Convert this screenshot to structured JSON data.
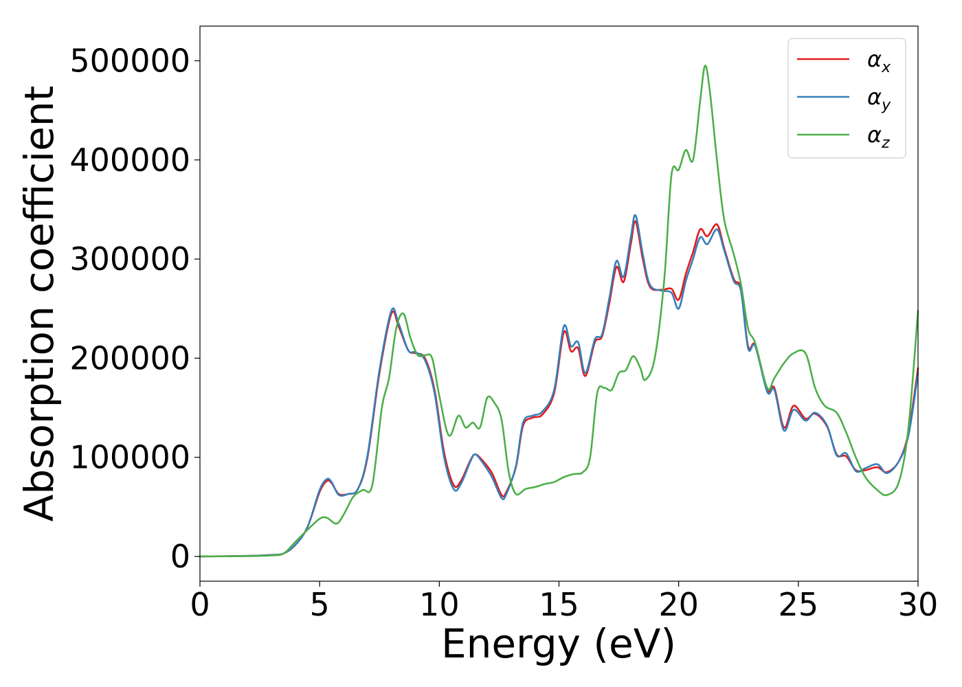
{
  "chart_data": {
    "type": "line",
    "xlabel": "Energy (eV)",
    "ylabel": "Absorption coefficient",
    "xlim": [
      0,
      30
    ],
    "ylim": [
      -25000,
      535000
    ],
    "xticks": [
      "0",
      "5",
      "10",
      "15",
      "20",
      "25",
      "30"
    ],
    "yticks": [
      "0",
      "100000",
      "200000",
      "300000",
      "400000",
      "500000"
    ],
    "grid": false,
    "legend_position": "top-right",
    "series": [
      {
        "name": "αx",
        "legend_base": "α",
        "legend_sub": "x",
        "color": "#e41a1c",
        "points": [
          [
            0,
            0
          ],
          [
            2,
            500
          ],
          [
            3,
            1500
          ],
          [
            3.5,
            3000
          ],
          [
            4,
            12000
          ],
          [
            4.5,
            30000
          ],
          [
            5,
            65000
          ],
          [
            5.3,
            76000
          ],
          [
            5.5,
            74000
          ],
          [
            5.8,
            63000
          ],
          [
            6.2,
            63000
          ],
          [
            6.6,
            68000
          ],
          [
            7,
            100000
          ],
          [
            7.5,
            185000
          ],
          [
            8,
            245000
          ],
          [
            8.3,
            232000
          ],
          [
            8.7,
            208000
          ],
          [
            9,
            205000
          ],
          [
            9.4,
            200000
          ],
          [
            9.8,
            168000
          ],
          [
            10.2,
            105000
          ],
          [
            10.6,
            72000
          ],
          [
            10.9,
            76000
          ],
          [
            11.3,
            97000
          ],
          [
            11.5,
            103000
          ],
          [
            11.8,
            97000
          ],
          [
            12.2,
            84000
          ],
          [
            12.6,
            62000
          ],
          [
            12.8,
            65000
          ],
          [
            13.2,
            90000
          ],
          [
            13.5,
            132000
          ],
          [
            13.9,
            140000
          ],
          [
            14.3,
            143000
          ],
          [
            14.8,
            165000
          ],
          [
            15.2,
            226000
          ],
          [
            15.5,
            207000
          ],
          [
            15.8,
            210000
          ],
          [
            16.1,
            182000
          ],
          [
            16.5,
            216000
          ],
          [
            16.8,
            222000
          ],
          [
            17.1,
            255000
          ],
          [
            17.4,
            292000
          ],
          [
            17.7,
            277000
          ],
          [
            18,
            315000
          ],
          [
            18.2,
            338000
          ],
          [
            18.5,
            300000
          ],
          [
            18.8,
            272000
          ],
          [
            19.3,
            269000
          ],
          [
            19.7,
            270000
          ],
          [
            20,
            259000
          ],
          [
            20.3,
            285000
          ],
          [
            20.6,
            307000
          ],
          [
            20.9,
            330000
          ],
          [
            21.2,
            323000
          ],
          [
            21.6,
            335000
          ],
          [
            21.9,
            311000
          ],
          [
            22.3,
            280000
          ],
          [
            22.6,
            270000
          ],
          [
            22.9,
            212000
          ],
          [
            23.2,
            213000
          ],
          [
            23.7,
            168000
          ],
          [
            24,
            170000
          ],
          [
            24.4,
            130000
          ],
          [
            24.8,
            152000
          ],
          [
            25.3,
            139000
          ],
          [
            25.7,
            144000
          ],
          [
            26.2,
            131000
          ],
          [
            26.6,
            103000
          ],
          [
            27,
            101000
          ],
          [
            27.4,
            87000
          ],
          [
            27.8,
            87000
          ],
          [
            28.3,
            90000
          ],
          [
            28.7,
            85000
          ],
          [
            29.2,
            96000
          ],
          [
            29.6,
            125000
          ],
          [
            30,
            190000
          ]
        ]
      },
      {
        "name": "αy",
        "legend_base": "α",
        "legend_sub": "y",
        "color": "#377eb8",
        "points": [
          [
            0,
            0
          ],
          [
            2,
            500
          ],
          [
            3,
            1500
          ],
          [
            3.5,
            3000
          ],
          [
            4,
            12000
          ],
          [
            4.5,
            30000
          ],
          [
            5,
            67000
          ],
          [
            5.3,
            78000
          ],
          [
            5.5,
            75000
          ],
          [
            5.8,
            62000
          ],
          [
            6.2,
            63000
          ],
          [
            6.6,
            68000
          ],
          [
            7,
            102000
          ],
          [
            7.5,
            188000
          ],
          [
            8,
            248000
          ],
          [
            8.3,
            235000
          ],
          [
            8.7,
            208000
          ],
          [
            9,
            206000
          ],
          [
            9.4,
            198000
          ],
          [
            9.8,
            165000
          ],
          [
            10.2,
            100000
          ],
          [
            10.6,
            68000
          ],
          [
            10.9,
            73000
          ],
          [
            11.3,
            96000
          ],
          [
            11.5,
            103000
          ],
          [
            11.8,
            95000
          ],
          [
            12.2,
            80000
          ],
          [
            12.6,
            59000
          ],
          [
            12.8,
            63000
          ],
          [
            13.2,
            91000
          ],
          [
            13.5,
            135000
          ],
          [
            13.9,
            142000
          ],
          [
            14.3,
            146000
          ],
          [
            14.8,
            168000
          ],
          [
            15.2,
            232000
          ],
          [
            15.5,
            212000
          ],
          [
            15.8,
            216000
          ],
          [
            16.1,
            185000
          ],
          [
            16.5,
            219000
          ],
          [
            16.8,
            224000
          ],
          [
            17.1,
            260000
          ],
          [
            17.4,
            298000
          ],
          [
            17.7,
            282000
          ],
          [
            18,
            322000
          ],
          [
            18.2,
            344000
          ],
          [
            18.5,
            305000
          ],
          [
            18.8,
            274000
          ],
          [
            19.3,
            268000
          ],
          [
            19.7,
            266000
          ],
          [
            20,
            250000
          ],
          [
            20.3,
            278000
          ],
          [
            20.6,
            300000
          ],
          [
            20.9,
            322000
          ],
          [
            21.2,
            315000
          ],
          [
            21.6,
            330000
          ],
          [
            21.9,
            309000
          ],
          [
            22.3,
            278000
          ],
          [
            22.6,
            268000
          ],
          [
            22.9,
            210000
          ],
          [
            23.2,
            212000
          ],
          [
            23.7,
            166000
          ],
          [
            24,
            168000
          ],
          [
            24.4,
            127000
          ],
          [
            24.8,
            148000
          ],
          [
            25.3,
            137000
          ],
          [
            25.7,
            145000
          ],
          [
            26.2,
            132000
          ],
          [
            26.6,
            102000
          ],
          [
            27,
            104000
          ],
          [
            27.4,
            86000
          ],
          [
            27.8,
            89000
          ],
          [
            28.3,
            93000
          ],
          [
            28.7,
            84000
          ],
          [
            29.2,
            96000
          ],
          [
            29.6,
            122000
          ],
          [
            30,
            185000
          ]
        ]
      },
      {
        "name": "αz",
        "legend_base": "α",
        "legend_sub": "z",
        "color": "#4daf4a",
        "points": [
          [
            0,
            0
          ],
          [
            2,
            300
          ],
          [
            3,
            1000
          ],
          [
            3.5,
            3000
          ],
          [
            4,
            15000
          ],
          [
            4.5,
            27000
          ],
          [
            5,
            38000
          ],
          [
            5.3,
            39000
          ],
          [
            5.7,
            33000
          ],
          [
            6,
            42000
          ],
          [
            6.4,
            60000
          ],
          [
            6.8,
            67000
          ],
          [
            7.2,
            72000
          ],
          [
            7.6,
            150000
          ],
          [
            7.9,
            180000
          ],
          [
            8.2,
            230000
          ],
          [
            8.5,
            245000
          ],
          [
            8.8,
            220000
          ],
          [
            9.1,
            203000
          ],
          [
            9.4,
            203000
          ],
          [
            9.7,
            200000
          ],
          [
            10,
            162000
          ],
          [
            10.4,
            122000
          ],
          [
            10.8,
            142000
          ],
          [
            11.1,
            130000
          ],
          [
            11.4,
            135000
          ],
          [
            11.7,
            130000
          ],
          [
            12,
            160000
          ],
          [
            12.3,
            155000
          ],
          [
            12.6,
            138000
          ],
          [
            12.9,
            85000
          ],
          [
            13.2,
            63000
          ],
          [
            13.6,
            68000
          ],
          [
            14,
            70000
          ],
          [
            14.4,
            73000
          ],
          [
            14.8,
            75000
          ],
          [
            15.2,
            80000
          ],
          [
            15.6,
            83000
          ],
          [
            16,
            85000
          ],
          [
            16.3,
            100000
          ],
          [
            16.6,
            165000
          ],
          [
            16.9,
            170000
          ],
          [
            17.2,
            168000
          ],
          [
            17.5,
            185000
          ],
          [
            17.8,
            188000
          ],
          [
            18.1,
            202000
          ],
          [
            18.4,
            190000
          ],
          [
            18.6,
            178000
          ],
          [
            19,
            200000
          ],
          [
            19.4,
            280000
          ],
          [
            19.7,
            385000
          ],
          [
            20,
            390000
          ],
          [
            20.3,
            410000
          ],
          [
            20.6,
            400000
          ],
          [
            20.9,
            460000
          ],
          [
            21.1,
            495000
          ],
          [
            21.3,
            470000
          ],
          [
            21.6,
            400000
          ],
          [
            21.9,
            340000
          ],
          [
            22.3,
            305000
          ],
          [
            22.6,
            275000
          ],
          [
            22.9,
            230000
          ],
          [
            23.2,
            215000
          ],
          [
            23.7,
            170000
          ],
          [
            24,
            180000
          ],
          [
            24.4,
            195000
          ],
          [
            24.8,
            205000
          ],
          [
            25.3,
            205000
          ],
          [
            25.7,
            170000
          ],
          [
            26.1,
            152000
          ],
          [
            26.6,
            145000
          ],
          [
            27,
            125000
          ],
          [
            27.4,
            100000
          ],
          [
            27.8,
            80000
          ],
          [
            28.3,
            67000
          ],
          [
            28.7,
            62000
          ],
          [
            29.2,
            75000
          ],
          [
            29.6,
            130000
          ],
          [
            30,
            248000
          ]
        ]
      }
    ]
  }
}
